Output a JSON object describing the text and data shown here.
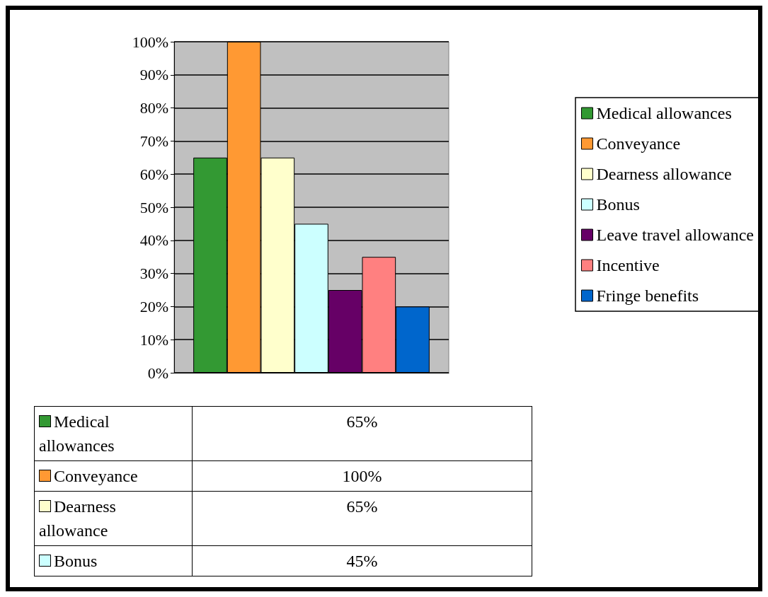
{
  "chart_data": {
    "type": "bar",
    "categories": [
      null
    ],
    "series": [
      {
        "name": "Medical allowances",
        "color": "#339933",
        "values": [
          65
        ]
      },
      {
        "name": "Conveyance",
        "color": "#ff9933",
        "values": [
          100
        ]
      },
      {
        "name": "Dearness allowance",
        "color": "#ffffcc",
        "values": [
          65
        ]
      },
      {
        "name": "Bonus",
        "color": "#ccffff",
        "values": [
          45
        ]
      },
      {
        "name": "Leave travel allowance",
        "color": "#660066",
        "values": [
          25
        ]
      },
      {
        "name": "Incentive",
        "color": "#ff8080",
        "values": [
          35
        ]
      },
      {
        "name": "Fringe benefits",
        "color": "#0066cc",
        "values": [
          20
        ]
      }
    ],
    "value_labels": [
      "65%",
      "100%",
      "65%",
      "45%",
      null,
      null,
      null
    ],
    "ylim": [
      0,
      100
    ],
    "yticks": [
      {
        "value": 0,
        "label": "0%"
      },
      {
        "value": 10,
        "label": "10%"
      },
      {
        "value": 20,
        "label": "20%"
      },
      {
        "value": 30,
        "label": "30%"
      },
      {
        "value": 40,
        "label": "40%"
      },
      {
        "value": 50,
        "label": "50%"
      },
      {
        "value": 60,
        "label": "60%"
      },
      {
        "value": 70,
        "label": "70%"
      },
      {
        "value": 80,
        "label": "80%"
      },
      {
        "value": 90,
        "label": "90%"
      },
      {
        "value": 100,
        "label": "100%"
      }
    ],
    "grid": "y",
    "legend": "right",
    "tick_labels": "y"
  }
}
